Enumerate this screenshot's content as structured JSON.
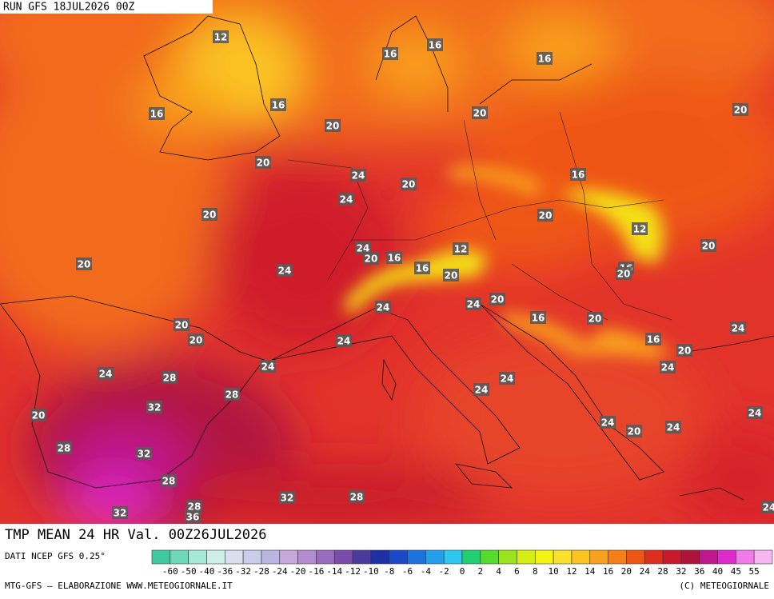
{
  "header": {
    "run": "RUN GFS 18JUL2026 00Z"
  },
  "map": {
    "title": "TMP MEAN 24 HR Val. 00Z26JUL2026",
    "labels": [
      12,
      16,
      16,
      16,
      16,
      16,
      20,
      20,
      20,
      20,
      24,
      16,
      24,
      20,
      20,
      20,
      12,
      24,
      20,
      16,
      12,
      16,
      20,
      16,
      20,
      20,
      20,
      24,
      24,
      24,
      20,
      16,
      20,
      24,
      20,
      20,
      24,
      16,
      20,
      24,
      24,
      24,
      28,
      24,
      28,
      24,
      32,
      20,
      24,
      24,
      24,
      20,
      28,
      32,
      28,
      32,
      28,
      28,
      36,
      32,
      24
    ]
  },
  "legend": {
    "source": "DATI NCEP GFS 0.25°",
    "ticks": [
      "-60",
      "-50",
      "-40",
      "-36",
      "-32",
      "-28",
      "-24",
      "-20",
      "-16",
      "-14",
      "-12",
      "-10",
      "-8",
      "-6",
      "-4",
      "-2",
      "0",
      "2",
      "4",
      "6",
      "8",
      "10",
      "12",
      "14",
      "16",
      "20",
      "24",
      "28",
      "32",
      "36",
      "40",
      "45",
      "55"
    ],
    "colors": [
      "#3fc9a0",
      "#6fd8b8",
      "#a6e8d6",
      "#cfeee8",
      "#d8e0ee",
      "#c8cdea",
      "#b9b7e2",
      "#c8a8dc",
      "#b48cd0",
      "#9a6cc0",
      "#7a4aac",
      "#4a3a9c",
      "#1f2fa6",
      "#1a48c8",
      "#1e72e0",
      "#22a0ee",
      "#2cc8f0",
      "#20d070",
      "#54dc2a",
      "#9be41c",
      "#d6ee10",
      "#f4f410",
      "#fbe02a",
      "#fbc421",
      "#f9a11c",
      "#f57e17",
      "#ef5616",
      "#df2e1e",
      "#c91a2c",
      "#ad1438",
      "#c0168e",
      "#de2ac8",
      "#f07ae8",
      "#f6b6f2"
    ]
  },
  "footer": {
    "left": "MTG-GFS — ELABORAZIONE WWW.METEOGIORNALE.IT",
    "right": "(C) METEOGIORNALE"
  }
}
